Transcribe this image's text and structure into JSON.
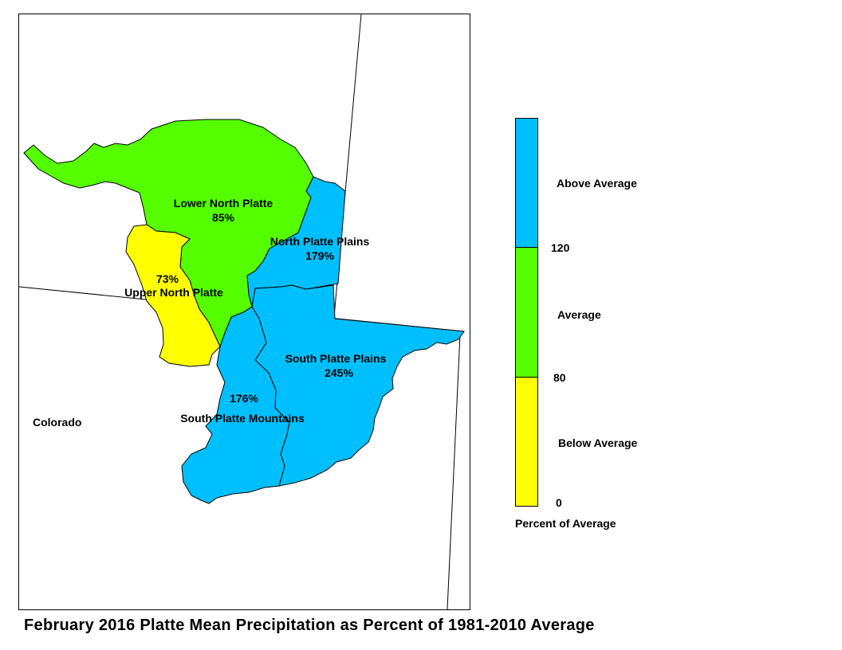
{
  "title": "February 2016 Platte Mean Precipitation as Percent of 1981-2010 Average",
  "state_label": "Colorado",
  "colors": {
    "above": "#00bfff",
    "average": "#55ff00",
    "below": "#ffff00",
    "border": "#000000"
  },
  "regions": [
    {
      "id": "lower-north-platte",
      "name": "Lower North Platte",
      "value": "85%",
      "category": "average"
    },
    {
      "id": "north-platte-plains",
      "name": "North Platte Plains",
      "value": "179%",
      "category": "above"
    },
    {
      "id": "upper-north-platte",
      "name": "Upper North Platte",
      "value": "73%",
      "category": "below"
    },
    {
      "id": "south-platte-plains",
      "name": "South Platte Plains",
      "value": "245%",
      "category": "above"
    },
    {
      "id": "south-platte-mountains",
      "name": "South Platte Mountains",
      "value": "176%",
      "category": "above"
    }
  ],
  "legend": {
    "categories": [
      {
        "label": "Above Average",
        "color": "#00bfff"
      },
      {
        "label": "Average",
        "color": "#55ff00"
      },
      {
        "label": "Below Average",
        "color": "#ffff00"
      }
    ],
    "breaks": [
      "120",
      "80",
      "0"
    ],
    "caption": "Percent of Average"
  }
}
